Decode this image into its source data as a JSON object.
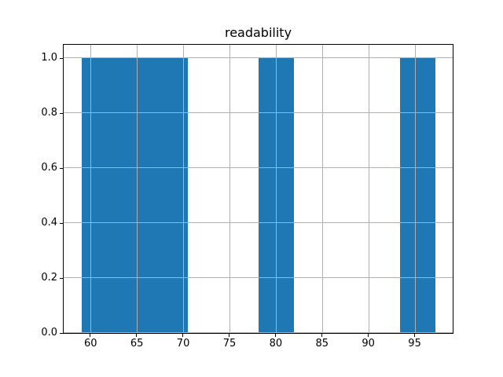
{
  "figure": {
    "background_color": "#ffffff"
  },
  "chart_data": {
    "type": "bar",
    "subtype": "histogram",
    "title": "readability",
    "xlabel": "",
    "ylabel": "",
    "bar_color": "#1f77b4",
    "grid_color": "#b0b0b0",
    "spine_color": "#000000",
    "grid": true,
    "grid_above_bars": true,
    "legend": false,
    "xlim": [
      57.09,
      99.11
    ],
    "ylim": [
      0,
      1.05
    ],
    "xticks": [
      60,
      65,
      70,
      75,
      80,
      85,
      90,
      95
    ],
    "xtick_labels": [
      "60",
      "65",
      "70",
      "75",
      "80",
      "85",
      "90",
      "95"
    ],
    "yticks": [
      0.0,
      0.2,
      0.4,
      0.6,
      0.8,
      1.0
    ],
    "ytick_labels": [
      "0.0",
      "0.2",
      "0.4",
      "0.6",
      "0.8",
      "1.0"
    ],
    "bin_width": 3.82,
    "bars": [
      {
        "x_start": 59.0,
        "x_end": 70.46,
        "height": 1.0
      },
      {
        "x_start": 78.1,
        "x_end": 81.92,
        "height": 1.0
      },
      {
        "x_start": 93.38,
        "x_end": 97.2,
        "height": 1.0
      }
    ]
  }
}
